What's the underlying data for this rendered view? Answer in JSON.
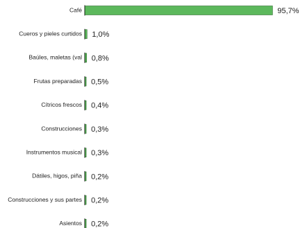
{
  "chart_data": {
    "type": "bar",
    "orientation": "horizontal",
    "categories": [
      "Café",
      "Cueros y pieles curtidos",
      "Baúles, maletas (val",
      "Frutas preparadas",
      "Cítricos frescos",
      "Construcciones",
      "Instrumentos musical",
      "Dátiles, higos, piña",
      "Construcciones y sus partes",
      "Asientos"
    ],
    "values": [
      95.7,
      1.0,
      0.8,
      0.5,
      0.4,
      0.3,
      0.3,
      0.2,
      0.2,
      0.2
    ],
    "value_labels": [
      "95,7%",
      "1,0%",
      "0,8%",
      "0,5%",
      "0,4%",
      "0,3%",
      "0,3%",
      "0,2%",
      "0,2%",
      "0,2%"
    ],
    "xlim": [
      0,
      100
    ],
    "bar_color": "#5cb85c",
    "bar_border_color": "#2e6b2e",
    "axis_color": "#222222",
    "grid": false,
    "legend": "none"
  }
}
